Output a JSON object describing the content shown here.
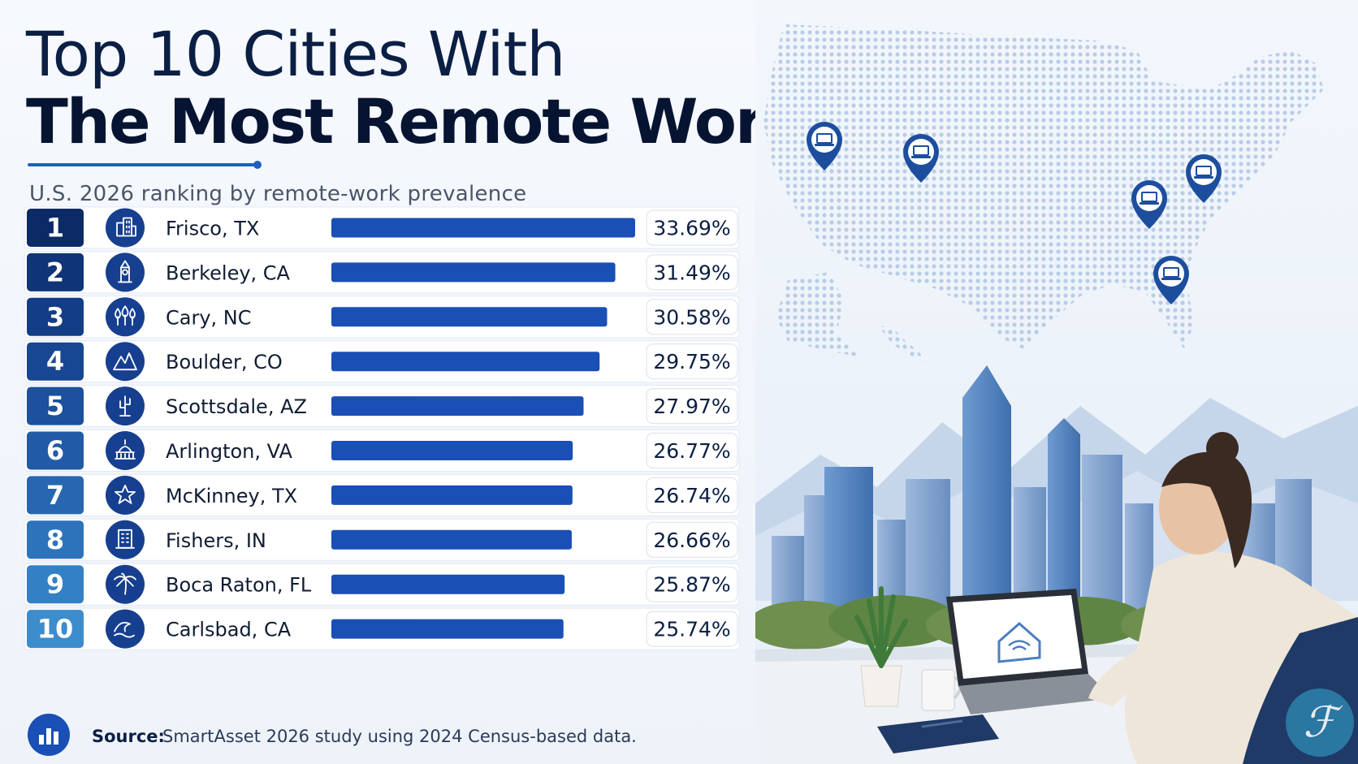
{
  "title": {
    "line1": "Top 10 Cities With",
    "line2": "The Most Remote Workers"
  },
  "subtitle": "U.S. 2026 ranking by remote-work prevalence",
  "colors": {
    "accent": "#1a4fb5",
    "rank_gradient": [
      "#0b2a66",
      "#0f3478",
      "#133d86",
      "#174792",
      "#1c519d",
      "#215ba7",
      "#2767b1",
      "#2d73bb",
      "#3480c4",
      "#3d8ccc"
    ]
  },
  "chart_data": {
    "type": "bar",
    "orientation": "horizontal",
    "unit": "%",
    "xlim": [
      0,
      33.69
    ],
    "categories": [
      "Frisco, TX",
      "Berkeley, CA",
      "Cary, NC",
      "Boulder, CO",
      "Scottsdale, AZ",
      "Arlington, VA",
      "McKinney, TX",
      "Fishers, IN",
      "Boca Raton, FL",
      "Carlsbad, CA"
    ],
    "ranks": [
      "1",
      "2",
      "3",
      "4",
      "5",
      "6",
      "7",
      "8",
      "9",
      "10"
    ],
    "values": [
      33.69,
      31.49,
      30.58,
      29.75,
      27.97,
      26.77,
      26.74,
      26.66,
      25.87,
      25.74
    ],
    "value_labels": [
      "33.69%",
      "31.49%",
      "30.58%",
      "29.75%",
      "27.97%",
      "26.77%",
      "26.74%",
      "26.66%",
      "25.87%",
      "25.74%"
    ],
    "icons": [
      "office-buildings-icon",
      "clock-tower-icon",
      "trees-icon",
      "mountains-icon",
      "cactus-icon",
      "capitol-dome-icon",
      "star-icon",
      "office-tower-icon",
      "palm-tree-icon",
      "wave-icon"
    ]
  },
  "map": {
    "pins": [
      "laptop-pin-icon",
      "laptop-pin-icon",
      "laptop-pin-icon",
      "laptop-pin-icon",
      "laptop-pin-icon"
    ]
  },
  "source": {
    "label": "Source:",
    "text": "SmartAsset 2026 study using 2024 Census-based data."
  }
}
